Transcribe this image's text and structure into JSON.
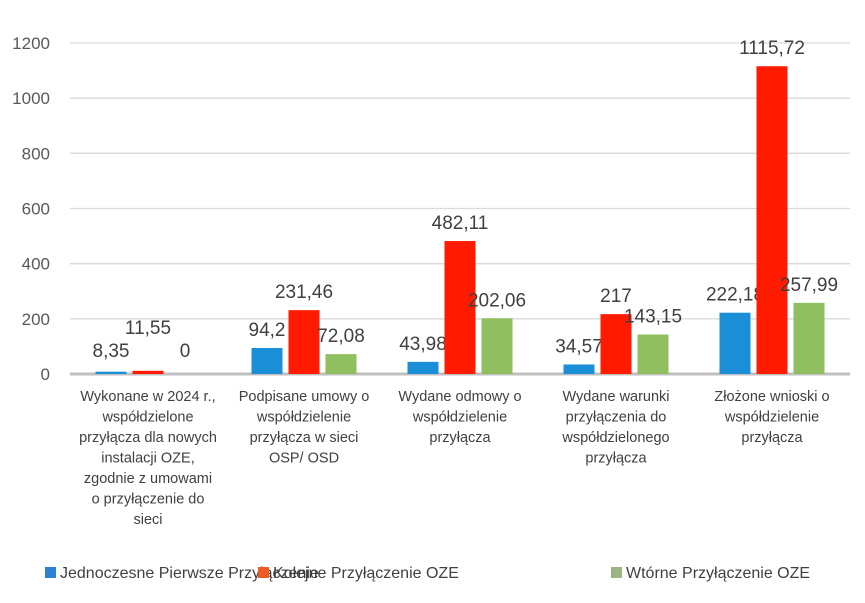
{
  "chart_data": {
    "type": "bar",
    "categories": [
      [
        "Wykonane w 2024 r.,",
        "współdzielone",
        "przyłącza dla nowych",
        "instalacji OZE,",
        "zgodnie z umowami",
        "o przyłączenie do",
        "sieci"
      ],
      [
        "Podpisane umowy o",
        "współdzielenie",
        "przyłącza w sieci",
        "OSP/ OSD"
      ],
      [
        "Wydane odmowy o",
        "współdzielenie",
        "przyłącza"
      ],
      [
        "Wydane warunki",
        "przyłączenia do",
        "współdzielonego",
        "przyłącza"
      ],
      [
        "Złożone wnioski o",
        "współdzielenie",
        "przyłącza"
      ]
    ],
    "series": [
      {
        "name": "Jednoczesne Pierwsze Przyłączenie",
        "color": "#1a8fd8",
        "values": [
          8.35,
          94.2,
          43.98,
          34.57,
          222.18
        ],
        "labels": [
          "8,35",
          "94,2",
          "43,98",
          "34,57",
          "222,18"
        ]
      },
      {
        "name": "Kolejne Przyłączenie OZE",
        "color": "#ff1a00",
        "values": [
          11.55,
          231.46,
          482.11,
          217,
          1115.72
        ],
        "labels": [
          "11,55",
          "231,46",
          "482,11",
          "217",
          "1115,72"
        ]
      },
      {
        "name": "Wtórne Przyłączenie OZE",
        "color": "#8fbf5e",
        "values": [
          0,
          72.08,
          202.06,
          143.15,
          257.99
        ],
        "labels": [
          "0",
          "72,08",
          "202,06",
          "143,15",
          "257,99"
        ]
      }
    ],
    "legend_colors": [
      "#2e7fd6",
      "#f05a22",
      "#9bb585"
    ],
    "yticks": [
      "0",
      "200",
      "400",
      "600",
      "800",
      "1000",
      "1200"
    ],
    "ylim": [
      0,
      1200
    ],
    "grid": true,
    "legend": "bottom",
    "title": "",
    "xlabel": "",
    "ylabel": ""
  }
}
